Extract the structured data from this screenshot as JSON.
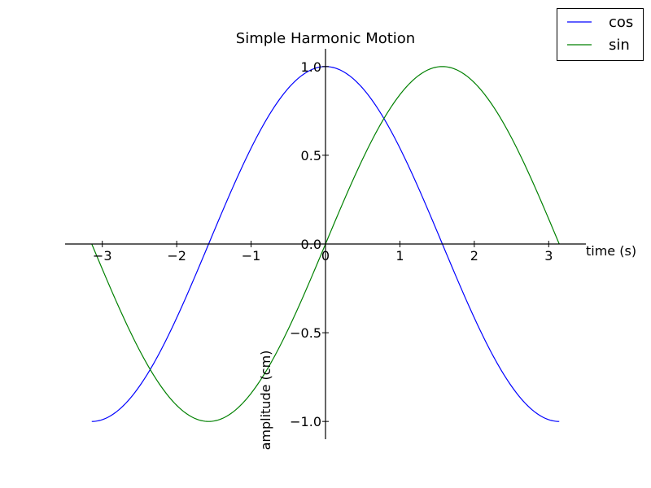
{
  "chart_data": {
    "type": "line",
    "title": "Simple Harmonic Motion",
    "xlabel": "time (s)",
    "ylabel": "amplitude (cm)",
    "xlim": [
      -3.5,
      3.5
    ],
    "ylim": [
      -1.1,
      1.1
    ],
    "x_range": [
      -3.14159,
      3.14159
    ],
    "xticks": [
      -3,
      -2,
      -1,
      0,
      1,
      2,
      3
    ],
    "xtick_labels": [
      "−3",
      "−2",
      "−1",
      "0",
      "1",
      "2",
      "3"
    ],
    "yticks": [
      -1.0,
      -0.5,
      0.0,
      0.5,
      1.0
    ],
    "ytick_labels": [
      "−1.0",
      "−0.5",
      "0.0",
      "0.5",
      "1.0"
    ],
    "spines": "centered",
    "grid": false,
    "legend_position": "top-right",
    "series": [
      {
        "name": "cos",
        "color": "#0000ff",
        "function": "cos"
      },
      {
        "name": "sin",
        "color": "#008000",
        "function": "sin"
      }
    ]
  }
}
